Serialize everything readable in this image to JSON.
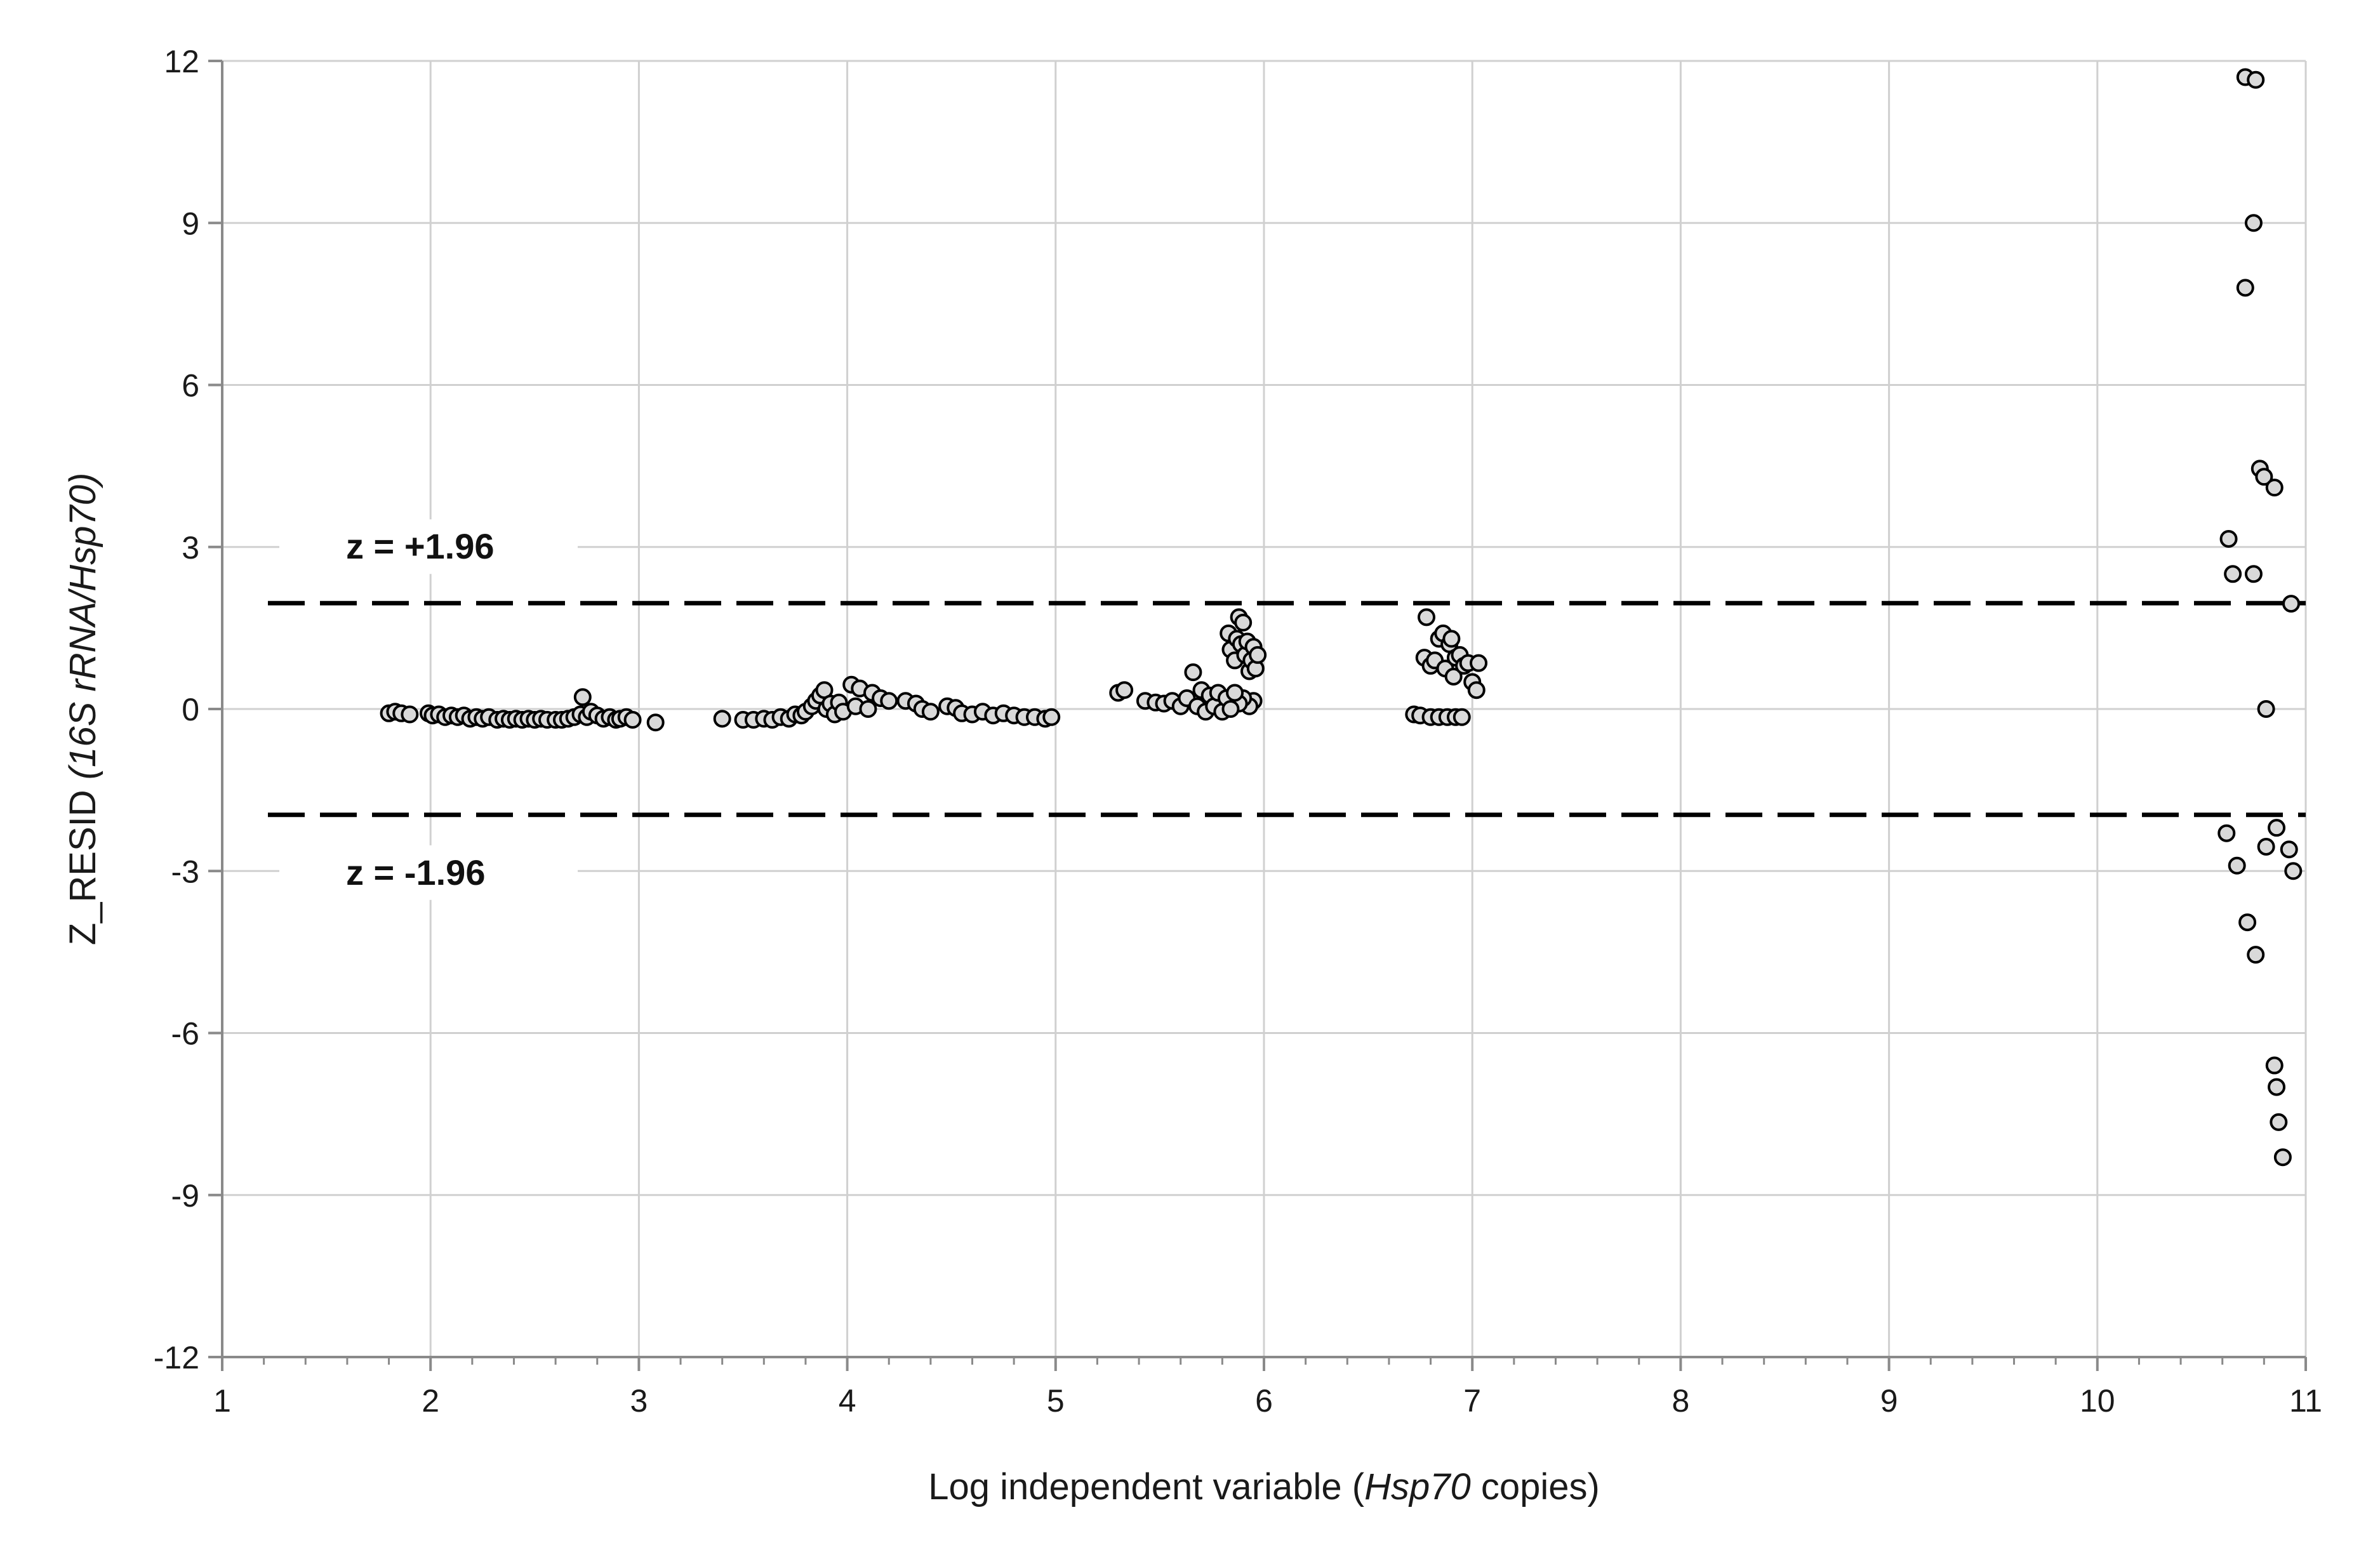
{
  "chart_data": {
    "type": "scatter",
    "title": "",
    "xlabel_parts": [
      "Log independent variable ",
      "Hsp70",
      " copies)"
    ],
    "xlabel_open_paren": "(",
    "ylabel_parts": [
      "Z_RESID ",
      "(16S rRNA/Hsp70)"
    ],
    "xlim": [
      1,
      11
    ],
    "ylim": [
      -12,
      12
    ],
    "x_ticks": [
      "1",
      "2",
      "3",
      "4",
      "5",
      "6",
      "7",
      "8",
      "9",
      "10",
      "11"
    ],
    "y_ticks": [
      "12",
      "9",
      "6",
      "3",
      "0",
      "-3",
      "-6",
      "-9",
      "-12"
    ],
    "grid": true,
    "reference_lines": [
      {
        "y": 1.96,
        "label": "z = +1.96"
      },
      {
        "y": -1.96,
        "label": "z = -1.96"
      }
    ],
    "colors": {
      "marker_fill": "#d9d9d9",
      "marker_edge": "#000000",
      "grid": "#d0d0d0",
      "reference_line": "#000000"
    },
    "points": [
      [
        1.8,
        -0.08
      ],
      [
        1.83,
        -0.05
      ],
      [
        1.86,
        -0.08
      ],
      [
        1.9,
        -0.1
      ],
      [
        1.99,
        -0.08
      ],
      [
        2.01,
        -0.12
      ],
      [
        2.04,
        -0.1
      ],
      [
        2.07,
        -0.15
      ],
      [
        2.1,
        -0.12
      ],
      [
        2.13,
        -0.15
      ],
      [
        2.16,
        -0.12
      ],
      [
        2.19,
        -0.18
      ],
      [
        2.22,
        -0.15
      ],
      [
        2.25,
        -0.18
      ],
      [
        2.28,
        -0.15
      ],
      [
        2.32,
        -0.2
      ],
      [
        2.35,
        -0.18
      ],
      [
        2.38,
        -0.2
      ],
      [
        2.41,
        -0.18
      ],
      [
        2.44,
        -0.2
      ],
      [
        2.47,
        -0.18
      ],
      [
        2.5,
        -0.2
      ],
      [
        2.53,
        -0.18
      ],
      [
        2.56,
        -0.2
      ],
      [
        2.6,
        -0.2
      ],
      [
        2.63,
        -0.2
      ],
      [
        2.66,
        -0.18
      ],
      [
        2.69,
        -0.15
      ],
      [
        2.72,
        -0.1
      ],
      [
        2.73,
        0.22
      ],
      [
        2.75,
        -0.15
      ],
      [
        2.77,
        -0.05
      ],
      [
        2.8,
        -0.12
      ],
      [
        2.83,
        -0.18
      ],
      [
        2.86,
        -0.15
      ],
      [
        2.89,
        -0.2
      ],
      [
        2.91,
        -0.18
      ],
      [
        2.94,
        -0.15
      ],
      [
        2.97,
        -0.2
      ],
      [
        3.08,
        -0.25
      ],
      [
        3.4,
        -0.18
      ],
      [
        3.5,
        -0.2
      ],
      [
        3.55,
        -0.2
      ],
      [
        3.6,
        -0.18
      ],
      [
        3.64,
        -0.2
      ],
      [
        3.68,
        -0.15
      ],
      [
        3.72,
        -0.18
      ],
      [
        3.75,
        -0.1
      ],
      [
        3.78,
        -0.12
      ],
      [
        3.8,
        -0.05
      ],
      [
        3.83,
        0.05
      ],
      [
        3.85,
        0.15
      ],
      [
        3.87,
        0.25
      ],
      [
        3.89,
        0.35
      ],
      [
        3.9,
        0.0
      ],
      [
        3.92,
        0.1
      ],
      [
        3.94,
        -0.1
      ],
      [
        3.96,
        0.12
      ],
      [
        3.98,
        -0.05
      ],
      [
        4.02,
        0.45
      ],
      [
        4.04,
        0.05
      ],
      [
        4.06,
        0.38
      ],
      [
        4.1,
        0.0
      ],
      [
        4.12,
        0.3
      ],
      [
        4.16,
        0.2
      ],
      [
        4.2,
        0.15
      ],
      [
        4.28,
        0.15
      ],
      [
        4.33,
        0.1
      ],
      [
        4.36,
        0.0
      ],
      [
        4.4,
        -0.05
      ],
      [
        4.48,
        0.05
      ],
      [
        4.52,
        0.02
      ],
      [
        4.55,
        -0.08
      ],
      [
        4.6,
        -0.1
      ],
      [
        4.65,
        -0.05
      ],
      [
        4.7,
        -0.12
      ],
      [
        4.75,
        -0.08
      ],
      [
        4.8,
        -0.12
      ],
      [
        4.85,
        -0.15
      ],
      [
        4.9,
        -0.15
      ],
      [
        4.95,
        -0.18
      ],
      [
        4.98,
        -0.15
      ],
      [
        5.3,
        0.3
      ],
      [
        5.33,
        0.35
      ],
      [
        5.43,
        0.15
      ],
      [
        5.48,
        0.12
      ],
      [
        5.52,
        0.1
      ],
      [
        5.56,
        0.15
      ],
      [
        5.6,
        0.05
      ],
      [
        5.63,
        0.2
      ],
      [
        5.66,
        0.68
      ],
      [
        5.68,
        0.05
      ],
      [
        5.7,
        0.35
      ],
      [
        5.72,
        -0.05
      ],
      [
        5.74,
        0.25
      ],
      [
        5.76,
        0.05
      ],
      [
        5.78,
        0.3
      ],
      [
        5.8,
        -0.05
      ],
      [
        5.82,
        0.2
      ],
      [
        5.83,
        1.4
      ],
      [
        5.84,
        1.1
      ],
      [
        5.86,
        0.9
      ],
      [
        5.87,
        1.3
      ],
      [
        5.88,
        1.7
      ],
      [
        5.89,
        1.2
      ],
      [
        5.9,
        1.6
      ],
      [
        5.91,
        1.0
      ],
      [
        5.92,
        1.25
      ],
      [
        5.93,
        0.7
      ],
      [
        5.94,
        0.9
      ],
      [
        5.95,
        1.15
      ],
      [
        5.96,
        0.75
      ],
      [
        5.97,
        1.0
      ],
      [
        5.95,
        0.15
      ],
      [
        5.93,
        0.05
      ],
      [
        5.9,
        0.2
      ],
      [
        5.88,
        0.1
      ],
      [
        5.86,
        0.3
      ],
      [
        5.84,
        0.0
      ],
      [
        6.72,
        -0.1
      ],
      [
        6.75,
        -0.12
      ],
      [
        6.78,
        1.7
      ],
      [
        6.77,
        0.95
      ],
      [
        6.8,
        0.8
      ],
      [
        6.82,
        0.9
      ],
      [
        6.84,
        1.3
      ],
      [
        6.86,
        1.4
      ],
      [
        6.87,
        0.75
      ],
      [
        6.89,
        1.2
      ],
      [
        6.9,
        1.3
      ],
      [
        6.91,
        0.6
      ],
      [
        6.92,
        0.95
      ],
      [
        6.94,
        1.0
      ],
      [
        6.96,
        0.8
      ],
      [
        6.98,
        0.85
      ],
      [
        7.0,
        0.5
      ],
      [
        7.02,
        0.35
      ],
      [
        7.03,
        0.85
      ],
      [
        6.8,
        -0.15
      ],
      [
        6.84,
        -0.15
      ],
      [
        6.88,
        -0.15
      ],
      [
        6.92,
        -0.15
      ],
      [
        6.95,
        -0.15
      ],
      [
        10.71,
        11.7
      ],
      [
        10.76,
        11.65
      ],
      [
        10.75,
        9.0
      ],
      [
        10.71,
        7.8
      ],
      [
        10.78,
        4.45
      ],
      [
        10.8,
        4.3
      ],
      [
        10.85,
        4.1
      ],
      [
        10.63,
        3.15
      ],
      [
        10.65,
        2.5
      ],
      [
        10.75,
        2.5
      ],
      [
        10.93,
        1.95
      ],
      [
        10.81,
        0.0
      ],
      [
        10.62,
        -2.3
      ],
      [
        10.86,
        -2.2
      ],
      [
        10.81,
        -2.55
      ],
      [
        10.92,
        -2.6
      ],
      [
        10.67,
        -2.9
      ],
      [
        10.94,
        -3.0
      ],
      [
        10.72,
        -3.95
      ],
      [
        10.76,
        -4.55
      ],
      [
        10.85,
        -6.6
      ],
      [
        10.86,
        -7.0
      ],
      [
        10.87,
        -7.65
      ],
      [
        10.89,
        -8.3
      ]
    ]
  }
}
